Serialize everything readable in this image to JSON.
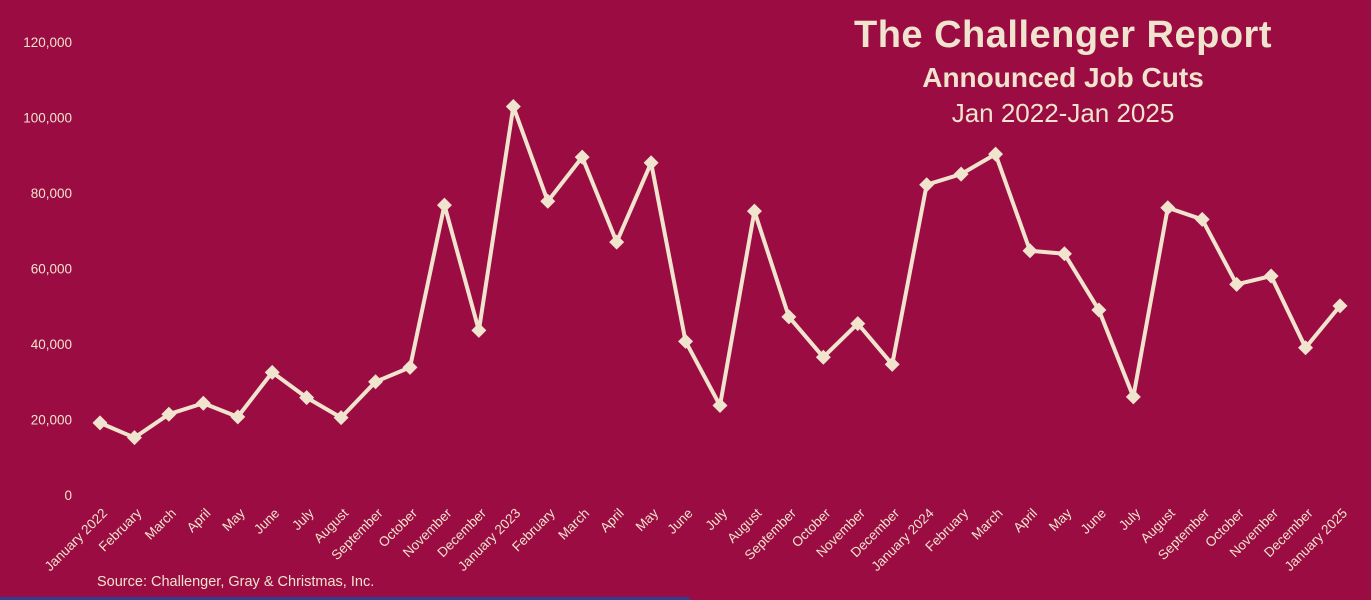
{
  "title": {
    "line1": "The Challenger Report",
    "line2": "Announced Job Cuts",
    "line3": "Jan 2022-Jan 2025"
  },
  "source_label": "Source: Challenger, Gray & Christmas, Inc.",
  "colors": {
    "background": "#9A0C42",
    "foreground": "#F0E4CE",
    "bottom_bar": "#323E8C"
  },
  "chart_data": {
    "type": "line",
    "title": "The Challenger Report",
    "subtitle": "Announced Job Cuts",
    "range_label": "Jan 2022-Jan 2025",
    "xlabel": "",
    "ylabel": "",
    "ylim": [
      0,
      120000
    ],
    "ytick_interval": 20000,
    "ytick_values": [
      0,
      20000,
      40000,
      60000,
      80000,
      100000,
      120000
    ],
    "ytick_labels": [
      "0",
      "20,000",
      "40,000",
      "60,000",
      "80,000",
      "100,000",
      "120,000"
    ],
    "grid": false,
    "legend": false,
    "marker": "diamond",
    "line_color": "#F0E4CE",
    "categories": [
      "January 2022",
      "February",
      "March",
      "April",
      "May",
      "June",
      "July",
      "August",
      "September",
      "October",
      "November",
      "December",
      "January 2023",
      "February",
      "March",
      "April",
      "May",
      "June",
      "July",
      "August",
      "September",
      "October",
      "November",
      "December",
      "January 2024",
      "February",
      "March",
      "April",
      "May",
      "June",
      "July",
      "August",
      "September",
      "October",
      "November",
      "December",
      "January 2025"
    ],
    "values": [
      19100,
      15200,
      21400,
      24300,
      20700,
      32500,
      25800,
      20500,
      30000,
      33800,
      76800,
      43600,
      102900,
      77800,
      89500,
      67000,
      88000,
      40700,
      23700,
      75200,
      47200,
      36500,
      45400,
      34600,
      82200,
      85000,
      90300,
      64700,
      63900,
      49000,
      26000,
      76100,
      73000,
      55800,
      58000,
      39000,
      50100
    ],
    "source": "Source: Challenger, Gray & Christmas, Inc."
  }
}
